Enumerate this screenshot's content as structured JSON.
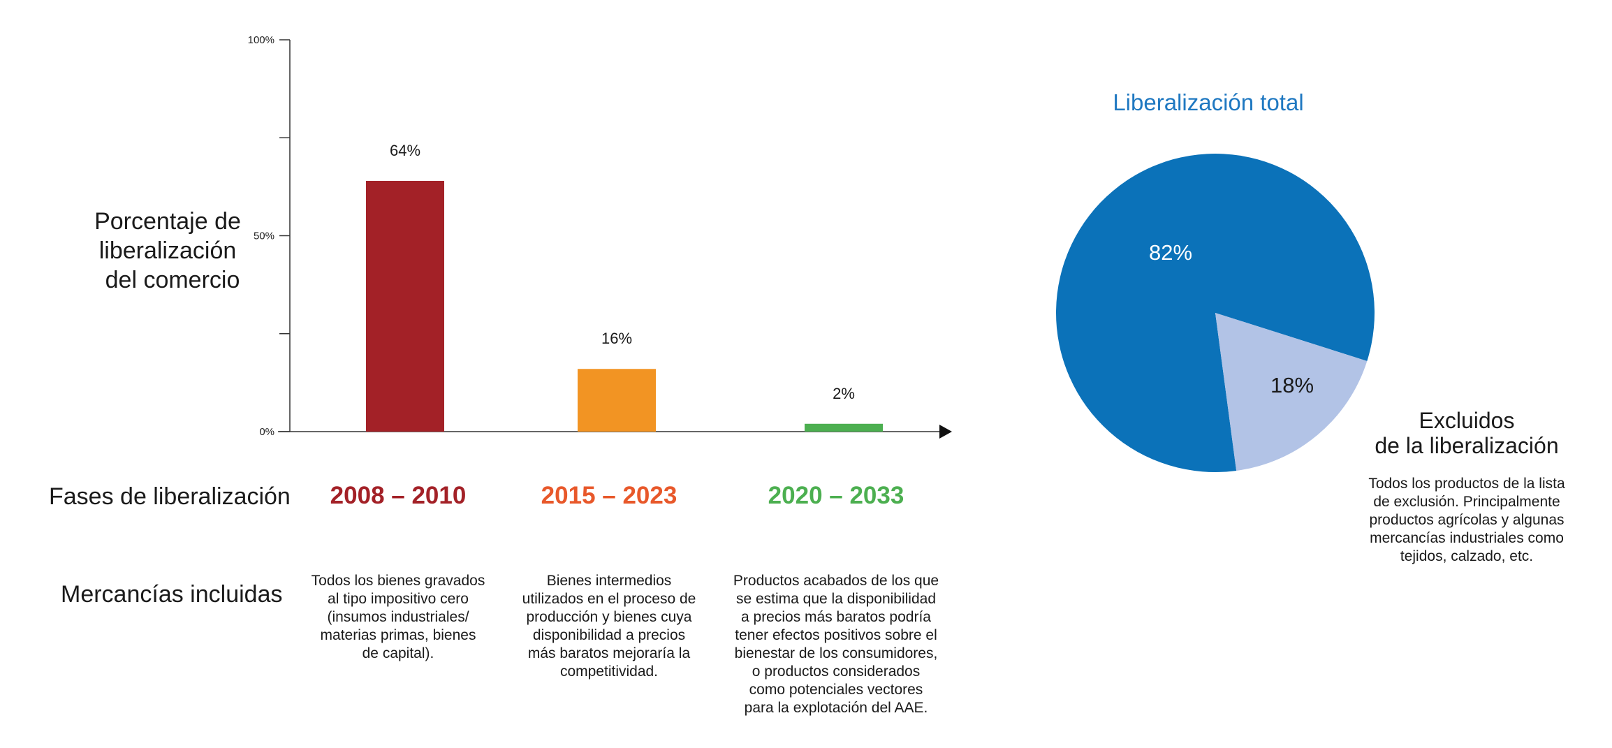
{
  "chart_data": [
    {
      "type": "bar",
      "ylabel": "Porcentaje de liberalización del comercio",
      "ylim": [
        0,
        100
      ],
      "y_ticks": [
        "0%",
        "50%",
        "100%"
      ],
      "categories": [
        "2008 – 2010",
        "2015 – 2023",
        "2020 – 2033"
      ],
      "values": [
        64,
        16,
        2
      ],
      "value_labels": [
        "64%",
        "16%",
        "2%"
      ],
      "colors": [
        "#a32127",
        "#f29423",
        "#4caf50"
      ],
      "phase_colors": [
        "#a32127",
        "#e8582a",
        "#4caf50"
      ],
      "grid": false
    },
    {
      "type": "pie",
      "title": "Liberalización total",
      "slices": [
        {
          "label": "Liberalización total",
          "value": 82,
          "value_label": "82%",
          "color": "#0b72b9"
        },
        {
          "label": "Excluidos de la liberalización",
          "value": 18,
          "value_label": "18%",
          "color": "#b2c3e6"
        }
      ]
    }
  ],
  "labels": {
    "y_title_lines": [
      "Porcentaje de",
      "liberalización",
      "del comercio"
    ],
    "phases_row": "Fases de liberalización",
    "goods_row": "Mercancías incluidas"
  },
  "descriptions": [
    [
      "Todos los bienes gravados",
      "al tipo impositivo cero",
      "(insumos industriales/",
      "materias primas, bienes",
      "de capital)."
    ],
    [
      "Bienes intermedios",
      "utilizados en el proceso de",
      "producción y bienes cuya",
      "disponibilidad a precios",
      "más baratos mejoraría la",
      "competitividad."
    ],
    [
      "Productos acabados de los que",
      "se estima que la disponibilidad",
      "a precios más baratos podría",
      "tener efectos positivos sobre el",
      "bienestar de los consumidores,",
      "o productos considerados",
      "como potenciales vectores",
      "para la explotación del AAE."
    ]
  ],
  "excluded": {
    "title_lines": [
      "Excluidos",
      "de la liberalización"
    ],
    "text_lines": [
      "Todos los productos de la lista",
      "de exclusión. Principalmente",
      "productos agrícolas y algunas",
      "mercancías industriales como",
      "tejidos, calzado, etc."
    ]
  }
}
